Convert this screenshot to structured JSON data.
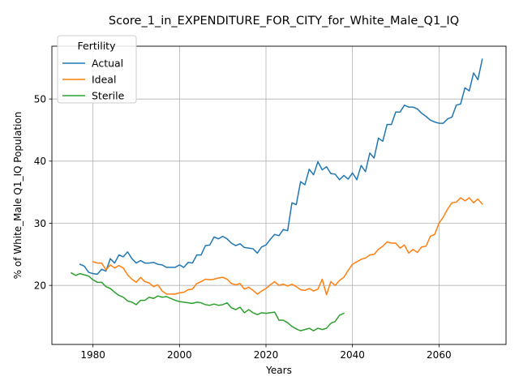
{
  "chart_data": {
    "type": "line",
    "title": "Score_1_in_EXPENDITURE_FOR_CITY_for_White_Male_Q1_IQ",
    "xlabel": "Years",
    "ylabel": "% of White_Male Q1_IQ Population",
    "xlim": [
      1970.5,
      2075.5
    ],
    "ylim": [
      10.5,
      58.5
    ],
    "xticks": [
      1980,
      2000,
      2020,
      2040,
      2060
    ],
    "yticks": [
      20,
      30,
      40,
      50
    ],
    "grid": true,
    "legend": {
      "title": "Fertility",
      "placement": "top-left"
    },
    "series": [
      {
        "name": "Actual",
        "color": "#1f77b4",
        "x": [
          1977,
          1978,
          1979,
          1980,
          1981,
          1982,
          1983,
          1984,
          1985,
          1986,
          1987,
          1988,
          1989,
          1990,
          1991,
          1992,
          1993,
          1994,
          1995,
          1996,
          1997,
          1998,
          1999,
          2000,
          2001,
          2002,
          2003,
          2004,
          2005,
          2006,
          2007,
          2008,
          2009,
          2010,
          2011,
          2012,
          2013,
          2014,
          2015,
          2016,
          2017,
          2018,
          2019,
          2020,
          2021,
          2022,
          2023,
          2024,
          2025,
          2026,
          2027,
          2028,
          2029,
          2030,
          2031,
          2032,
          2033,
          2034,
          2035,
          2036,
          2037,
          2038,
          2039,
          2040,
          2041,
          2042,
          2043,
          2044,
          2045,
          2046,
          2047,
          2048,
          2049,
          2050,
          2051,
          2052,
          2053,
          2054,
          2055,
          2056,
          2057,
          2058,
          2059,
          2060,
          2061,
          2062,
          2063,
          2064,
          2065,
          2066,
          2067,
          2068,
          2069,
          2070
        ],
        "values": [
          23.4,
          23.1,
          22.1,
          21.9,
          21.8,
          22.6,
          22.3,
          24.3,
          23.6,
          24.9,
          24.6,
          25.4,
          24.3,
          23.6,
          24.0,
          23.6,
          23.6,
          23.7,
          23.4,
          23.3,
          22.9,
          22.9,
          22.9,
          23.3,
          22.9,
          23.7,
          23.6,
          24.9,
          24.9,
          26.4,
          26.5,
          27.8,
          27.5,
          27.9,
          27.5,
          26.8,
          26.4,
          26.7,
          26.1,
          26.0,
          25.9,
          25.2,
          26.2,
          26.5,
          27.4,
          28.2,
          28.0,
          29.0,
          28.8,
          33.3,
          33.0,
          36.7,
          36.2,
          38.7,
          37.8,
          39.9,
          38.6,
          39.1,
          38.0,
          37.9,
          37.0,
          37.7,
          37.1,
          38.1,
          37.0,
          39.3,
          38.3,
          41.3,
          40.5,
          43.7,
          43.2,
          45.9,
          45.9,
          47.9,
          47.9,
          49.0,
          48.7,
          48.7,
          48.4,
          47.7,
          47.2,
          46.6,
          46.3,
          46.1,
          46.1,
          46.8,
          47.1,
          49.0,
          49.2,
          51.8,
          51.3,
          54.2,
          53.1,
          56.4
        ]
      },
      {
        "name": "Ideal",
        "color": "#ff7f0e",
        "x": [
          1980,
          1981,
          1982,
          1983,
          1984,
          1985,
          1986,
          1987,
          1988,
          1989,
          1990,
          1991,
          1992,
          1993,
          1994,
          1995,
          1996,
          1997,
          1998,
          1999,
          2000,
          2001,
          2002,
          2003,
          2004,
          2005,
          2006,
          2007,
          2008,
          2009,
          2010,
          2011,
          2012,
          2013,
          2014,
          2015,
          2016,
          2017,
          2018,
          2019,
          2020,
          2021,
          2022,
          2023,
          2024,
          2025,
          2026,
          2027,
          2028,
          2029,
          2030,
          2031,
          2032,
          2033,
          2034,
          2035,
          2036,
          2037,
          2038,
          2039,
          2040,
          2041,
          2042,
          2043,
          2044,
          2045,
          2046,
          2047,
          2048,
          2049,
          2050,
          2051,
          2052,
          2053,
          2054,
          2055,
          2056,
          2057,
          2058,
          2059,
          2060,
          2061,
          2062,
          2063,
          2064,
          2065,
          2066,
          2067,
          2068,
          2069,
          2070
        ],
        "values": [
          23.8,
          23.6,
          23.6,
          22.5,
          23.3,
          22.8,
          23.2,
          22.8,
          21.7,
          21.0,
          20.5,
          21.3,
          20.6,
          20.4,
          19.8,
          20.1,
          19.1,
          18.6,
          18.6,
          18.6,
          18.8,
          18.9,
          19.3,
          19.4,
          20.3,
          20.6,
          21.0,
          20.9,
          21.0,
          21.2,
          21.3,
          21.0,
          20.3,
          20.1,
          20.3,
          19.4,
          19.7,
          19.2,
          18.6,
          19.1,
          19.5,
          20.1,
          20.6,
          20.0,
          20.2,
          19.9,
          20.2,
          19.8,
          19.3,
          19.2,
          19.5,
          19.1,
          19.4,
          21.0,
          18.5,
          20.6,
          20.0,
          20.8,
          21.3,
          22.4,
          23.4,
          23.8,
          24.2,
          24.4,
          24.9,
          25.0,
          25.8,
          26.3,
          27.0,
          26.8,
          26.8,
          26.0,
          26.5,
          25.2,
          25.8,
          25.3,
          26.2,
          26.3,
          27.9,
          28.2,
          30.0,
          31.0,
          32.3,
          33.3,
          33.4,
          34.1,
          33.6,
          34.1,
          33.3,
          33.9,
          33.1
        ]
      },
      {
        "name": "Sterile",
        "color": "#2ca02c",
        "x": [
          1975,
          1976,
          1977,
          1978,
          1979,
          1980,
          1981,
          1982,
          1983,
          1984,
          1985,
          1986,
          1987,
          1988,
          1989,
          1990,
          1991,
          1992,
          1993,
          1994,
          1995,
          1996,
          1997,
          1998,
          1999,
          2000,
          2001,
          2002,
          2003,
          2004,
          2005,
          2006,
          2007,
          2008,
          2009,
          2010,
          2011,
          2012,
          2013,
          2014,
          2015,
          2016,
          2017,
          2018,
          2019,
          2020,
          2021,
          2022,
          2023,
          2024,
          2025,
          2026,
          2027,
          2028,
          2029,
          2030,
          2031,
          2032,
          2033,
          2034,
          2035,
          2036,
          2037,
          2038
        ],
        "values": [
          22.0,
          21.6,
          21.9,
          21.7,
          21.5,
          20.9,
          20.5,
          20.5,
          19.8,
          19.5,
          18.9,
          18.4,
          18.1,
          17.5,
          17.3,
          16.9,
          17.6,
          17.6,
          18.1,
          17.9,
          18.3,
          18.1,
          18.2,
          17.9,
          17.6,
          17.4,
          17.3,
          17.2,
          17.1,
          17.3,
          17.2,
          16.9,
          16.8,
          17.0,
          16.8,
          16.9,
          17.2,
          16.4,
          16.1,
          16.5,
          15.6,
          16.1,
          15.6,
          15.3,
          15.6,
          15.5,
          15.6,
          15.7,
          14.4,
          14.4,
          14.0,
          13.4,
          13.0,
          12.7,
          12.9,
          13.1,
          12.7,
          13.1,
          12.9,
          13.1,
          13.9,
          14.2,
          15.2,
          15.5
        ]
      }
    ]
  }
}
